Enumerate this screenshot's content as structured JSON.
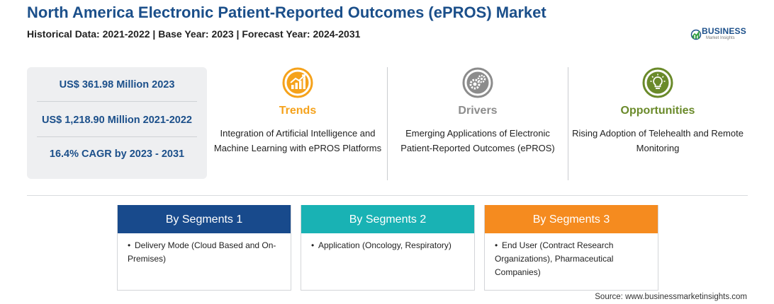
{
  "header": {
    "title": "North America Electronic Patient-Reported Outcomes (ePROS) Market",
    "subtitle": "Historical Data: 2021-2022 | Base Year: 2023 | Forecast Year: 2024-2031"
  },
  "logo": {
    "name": "BUSINESS",
    "tagline": "Market Insights"
  },
  "stats": [
    "US$ 361.98 Million 2023",
    "US$ 1,218.90 Million 2021-2022",
    "16.4% CAGR by 2023 - 2031"
  ],
  "columns": {
    "trends": {
      "title": "Trends",
      "text": "Integration of Artificial Intelligence and Machine Learning with ePROS Platforms",
      "color": "#f5a21b",
      "icon": "growth-chart-icon"
    },
    "drivers": {
      "title": "Drivers",
      "text": "Emerging Applications of Electronic Patient-Reported Outcomes (ePROS)",
      "color": "#8c8c8c",
      "icon": "gears-icon"
    },
    "opportunities": {
      "title": "Opportunities",
      "text": "Rising Adoption of Telehealth and Remote Monitoring",
      "color": "#6a8a2a",
      "icon": "lightbulb-icon"
    }
  },
  "segments": [
    {
      "title": "By Segments 1",
      "item": "Delivery Mode (Cloud Based and On-Premises)",
      "color": "#184a8c"
    },
    {
      "title": "By Segments 2",
      "item": "Application (Oncology, Respiratory)",
      "color": "#19b2b4"
    },
    {
      "title": "By Segments 3",
      "item": "End User (Contract Research Organizations), Pharmaceutical Companies)",
      "color": "#f58b1f"
    }
  ],
  "source": "Source: www.businessmarketinsights.com",
  "colors": {
    "title": "#1b4f8a",
    "stats_bg": "#eeeff1"
  }
}
